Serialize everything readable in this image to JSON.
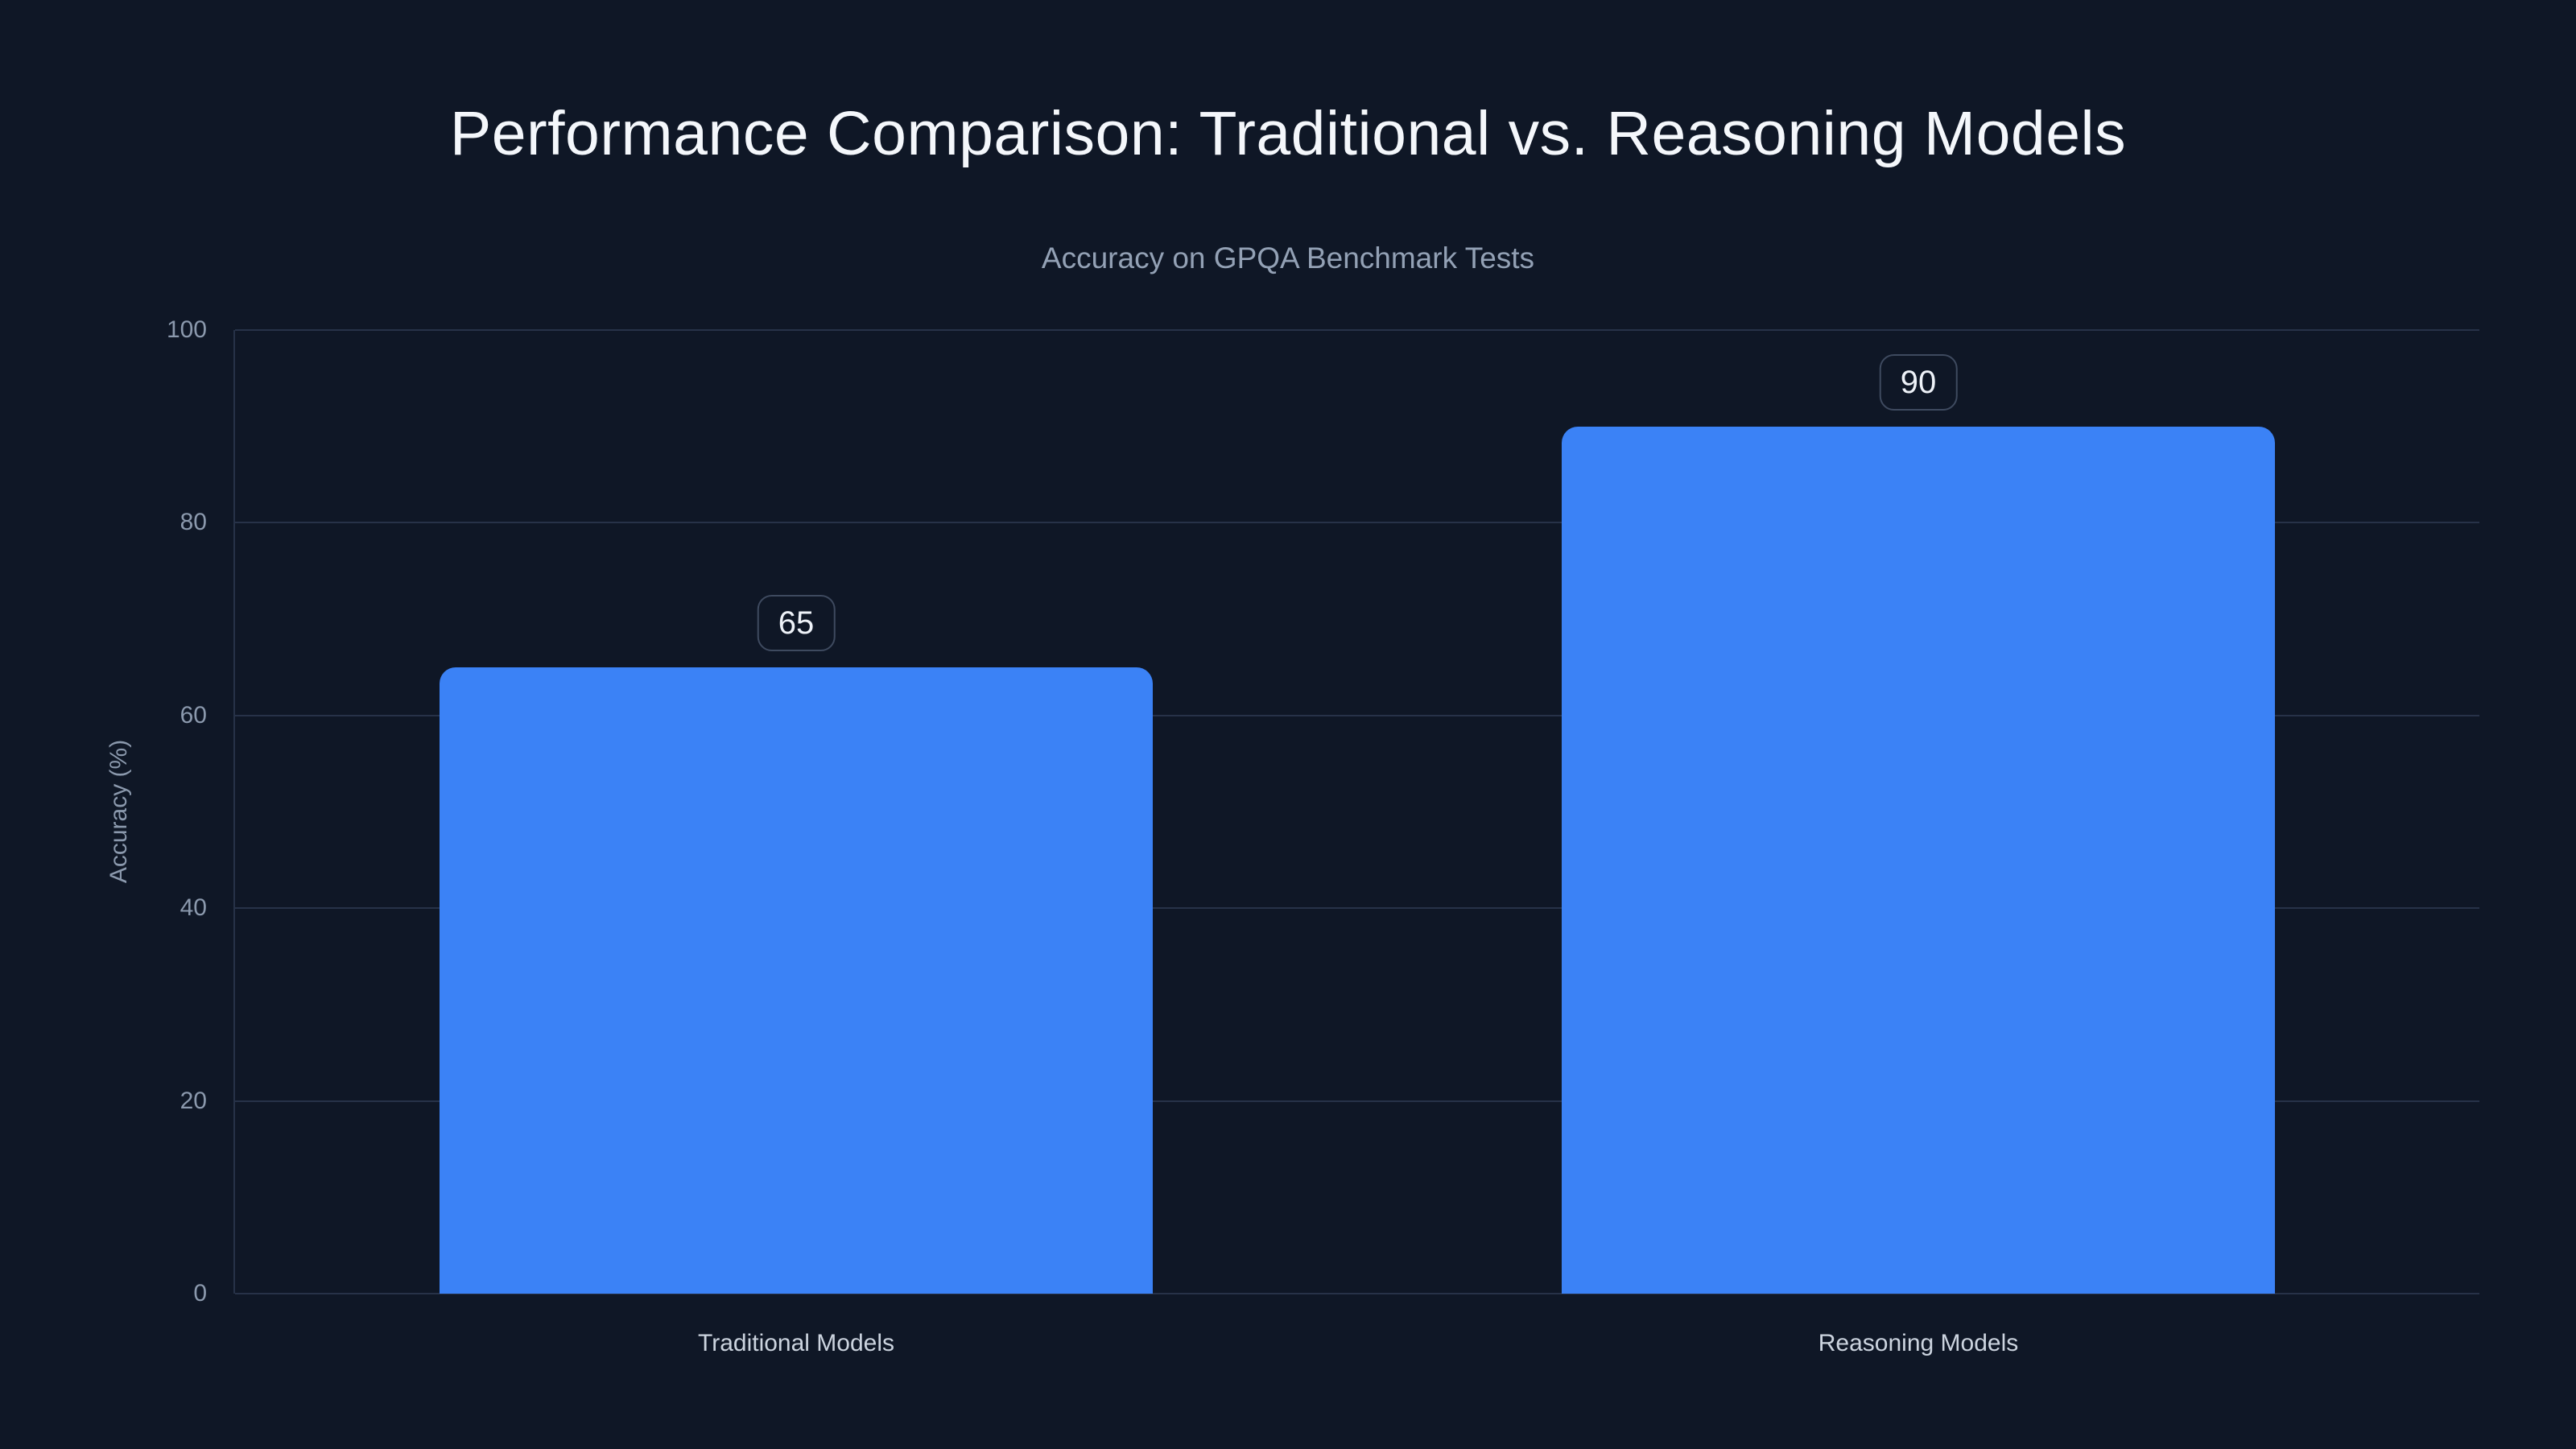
{
  "page": {
    "title": "Performance Comparison: Traditional vs. Reasoning Models",
    "subtitle": "Accuracy on GPQA Benchmark Tests"
  },
  "chart_data": {
    "type": "bar",
    "title": "Performance Comparison: Traditional vs. Reasoning Models",
    "subtitle": "Accuracy on GPQA Benchmark Tests",
    "categories": [
      "Traditional Models",
      "Reasoning Models"
    ],
    "values": [
      65,
      90
    ],
    "value_labels": [
      "65",
      "90"
    ],
    "xlabel": "",
    "ylabel": "Accuracy (%)",
    "ylim": [
      0,
      100
    ],
    "yticks": [
      0,
      20,
      40,
      60,
      80,
      100
    ],
    "grid": "horizontal",
    "legend": "none"
  },
  "colors": {
    "background": "#0f1726",
    "bar": "#3b82f6",
    "title": "#f4f7fb",
    "subtitle": "#93a1b5",
    "tick": "#8b99ad",
    "category": "#ccd4df",
    "gridline": "#273248",
    "badgeBorder": "#3e4a5f",
    "badgeText": "#eef2f8"
  }
}
